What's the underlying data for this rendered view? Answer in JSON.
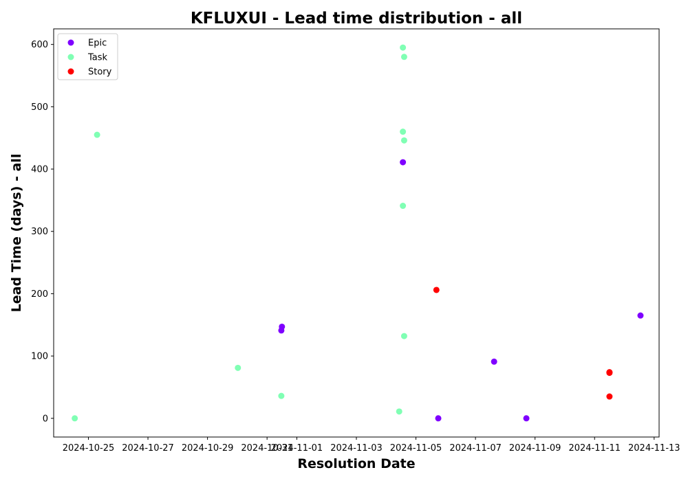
{
  "chart_data": {
    "type": "scatter",
    "title": "KFLUXUI - Lead time distribution - all",
    "xlabel": "Resolution Date",
    "ylabel": "Lead Time (days) - all",
    "xlim": [
      "2024-10-23T20:00",
      "2024-11-13T04:00"
    ],
    "ylim": [
      -30,
      625
    ],
    "x_ticks": [
      "2024-10-25",
      "2024-10-27",
      "2024-10-29",
      "2024-10-31",
      "2024-11-01",
      "2024-11-03",
      "2024-11-05",
      "2024-11-07",
      "2024-11-09",
      "2024-11-11",
      "2024-11-13"
    ],
    "y_ticks": [
      0,
      100,
      200,
      300,
      400,
      500,
      600
    ],
    "grid": false,
    "legend_position": "top-left",
    "series": [
      {
        "name": "Epic",
        "color": "#7f00ff",
        "points": [
          {
            "x": "2024-10-31T12:00",
            "y": 147
          },
          {
            "x": "2024-10-31T11:30",
            "y": 141
          },
          {
            "x": "2024-11-04T13:30",
            "y": 411
          },
          {
            "x": "2024-11-05T18:00",
            "y": 0
          },
          {
            "x": "2024-11-07T15:00",
            "y": 91
          },
          {
            "x": "2024-11-08T17:00",
            "y": 0
          },
          {
            "x": "2024-11-12T13:00",
            "y": 165
          }
        ]
      },
      {
        "name": "Task",
        "color": "#80ffb4",
        "points": [
          {
            "x": "2024-10-24T13:00",
            "y": 0
          },
          {
            "x": "2024-10-25T07:00",
            "y": 455
          },
          {
            "x": "2024-10-30T00:30",
            "y": 81
          },
          {
            "x": "2024-10-31T11:30",
            "y": 36
          },
          {
            "x": "2024-11-04T10:30",
            "y": 11
          },
          {
            "x": "2024-11-04T13:30",
            "y": 595
          },
          {
            "x": "2024-11-04T14:30",
            "y": 580
          },
          {
            "x": "2024-11-04T13:30",
            "y": 460
          },
          {
            "x": "2024-11-04T14:30",
            "y": 446
          },
          {
            "x": "2024-11-04T13:30",
            "y": 341
          },
          {
            "x": "2024-11-04T14:30",
            "y": 132
          }
        ]
      },
      {
        "name": "Story",
        "color": "#ff0000",
        "points": [
          {
            "x": "2024-11-05T16:30",
            "y": 206
          },
          {
            "x": "2024-11-11T12:00",
            "y": 74
          },
          {
            "x": "2024-11-11T12:00",
            "y": 73
          },
          {
            "x": "2024-11-11T12:00",
            "y": 35
          }
        ]
      }
    ]
  }
}
